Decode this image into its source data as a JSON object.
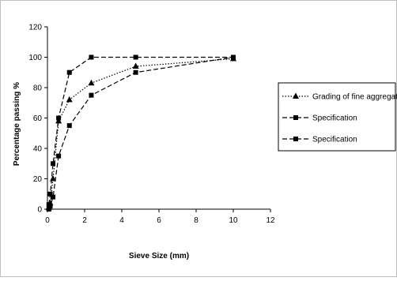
{
  "chart_data": {
    "type": "line",
    "xlabel": "Sieve Size (mm)",
    "ylabel": "Percentage passing %",
    "xlim": [
      0,
      12
    ],
    "ylim": [
      0,
      120
    ],
    "xticks": [
      0,
      2,
      4,
      6,
      8,
      10,
      12
    ],
    "yticks": [
      0,
      20,
      40,
      60,
      80,
      100,
      120
    ],
    "grid": false,
    "legend_position": "right",
    "series": [
      {
        "name": "Grading of fine aggregate",
        "line_style": "dotted",
        "marker": "triangle",
        "x": [
          0.075,
          0.15,
          0.3,
          0.6,
          1.18,
          2.36,
          4.75,
          10
        ],
        "y": [
          1,
          4,
          20,
          58,
          72,
          83,
          94,
          99
        ]
      },
      {
        "name": "Specification",
        "line_style": "dashed",
        "marker": "square",
        "x": [
          0.075,
          0.15,
          0.3,
          0.6,
          1.18,
          2.36,
          4.75,
          10
        ],
        "y": [
          0,
          2,
          8,
          35,
          55,
          75,
          90,
          100
        ]
      },
      {
        "name": "Specification",
        "line_style": "dashed",
        "marker": "square",
        "x": [
          0.075,
          0.15,
          0.3,
          0.6,
          1.18,
          2.36,
          4.75,
          10
        ],
        "y": [
          3,
          10,
          30,
          60,
          90,
          100,
          100,
          100
        ]
      }
    ]
  }
}
